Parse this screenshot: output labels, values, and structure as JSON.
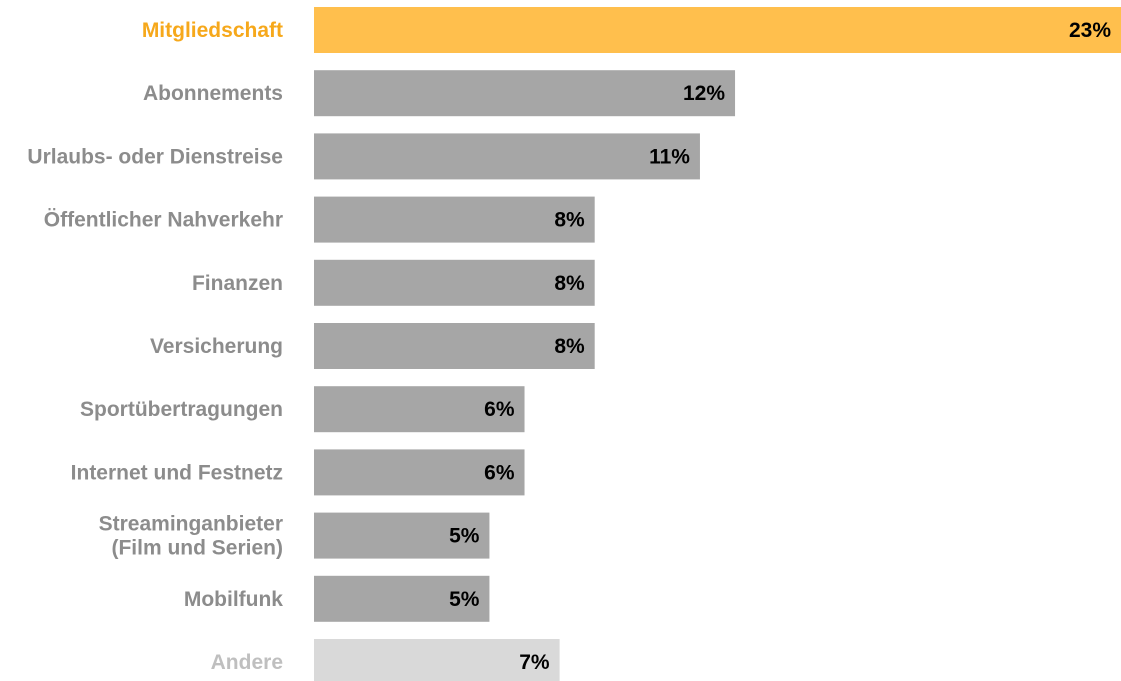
{
  "chart_data": {
    "type": "bar",
    "orientation": "horizontal",
    "title": "",
    "xlabel": "",
    "ylabel": "",
    "grid": false,
    "legend": "none",
    "xlim": [
      0,
      23
    ],
    "unit": "%",
    "categories": [
      "Mitgliedschaft",
      "Abonnements",
      "Urlaubs- oder Dienstreise",
      "Öffentlicher Nahverkehr",
      "Finanzen",
      "Versicherung",
      "Sportübertragungen",
      "Internet und Festnetz",
      "Streaminganbieter (Film und Serien)",
      "Mobilfunk",
      "Andere"
    ],
    "label_lines": [
      [
        "Mitgliedschaft"
      ],
      [
        "Abonnements"
      ],
      [
        "Urlaubs- oder Dienstreise"
      ],
      [
        "Öffentlicher Nahverkehr"
      ],
      [
        "Finanzen"
      ],
      [
        "Versicherung"
      ],
      [
        "Sportübertragungen"
      ],
      [
        "Internet und Festnetz"
      ],
      [
        "Streaminganbieter",
        "(Film und Serien)"
      ],
      [
        "Mobilfunk"
      ],
      [
        "Andere"
      ]
    ],
    "values": [
      23,
      12,
      11,
      8,
      8,
      8,
      6,
      6,
      5,
      5,
      7
    ],
    "value_labels": [
      "23%",
      "12%",
      "11%",
      "8%",
      "8%",
      "8%",
      "6%",
      "6%",
      "5%",
      "5%",
      "7%"
    ],
    "bar_colors": [
      "#FFBF4D",
      "#A6A6A6",
      "#A6A6A6",
      "#A6A6A6",
      "#A6A6A6",
      "#A6A6A6",
      "#A6A6A6",
      "#A6A6A6",
      "#A6A6A6",
      "#A6A6A6",
      "#D9D9D9"
    ],
    "label_colors": [
      "#F6A81B",
      "#8C8C8C",
      "#8C8C8C",
      "#8C8C8C",
      "#8C8C8C",
      "#8C8C8C",
      "#8C8C8C",
      "#8C8C8C",
      "#8C8C8C",
      "#8C8C8C",
      "#BFBFBF"
    ]
  }
}
